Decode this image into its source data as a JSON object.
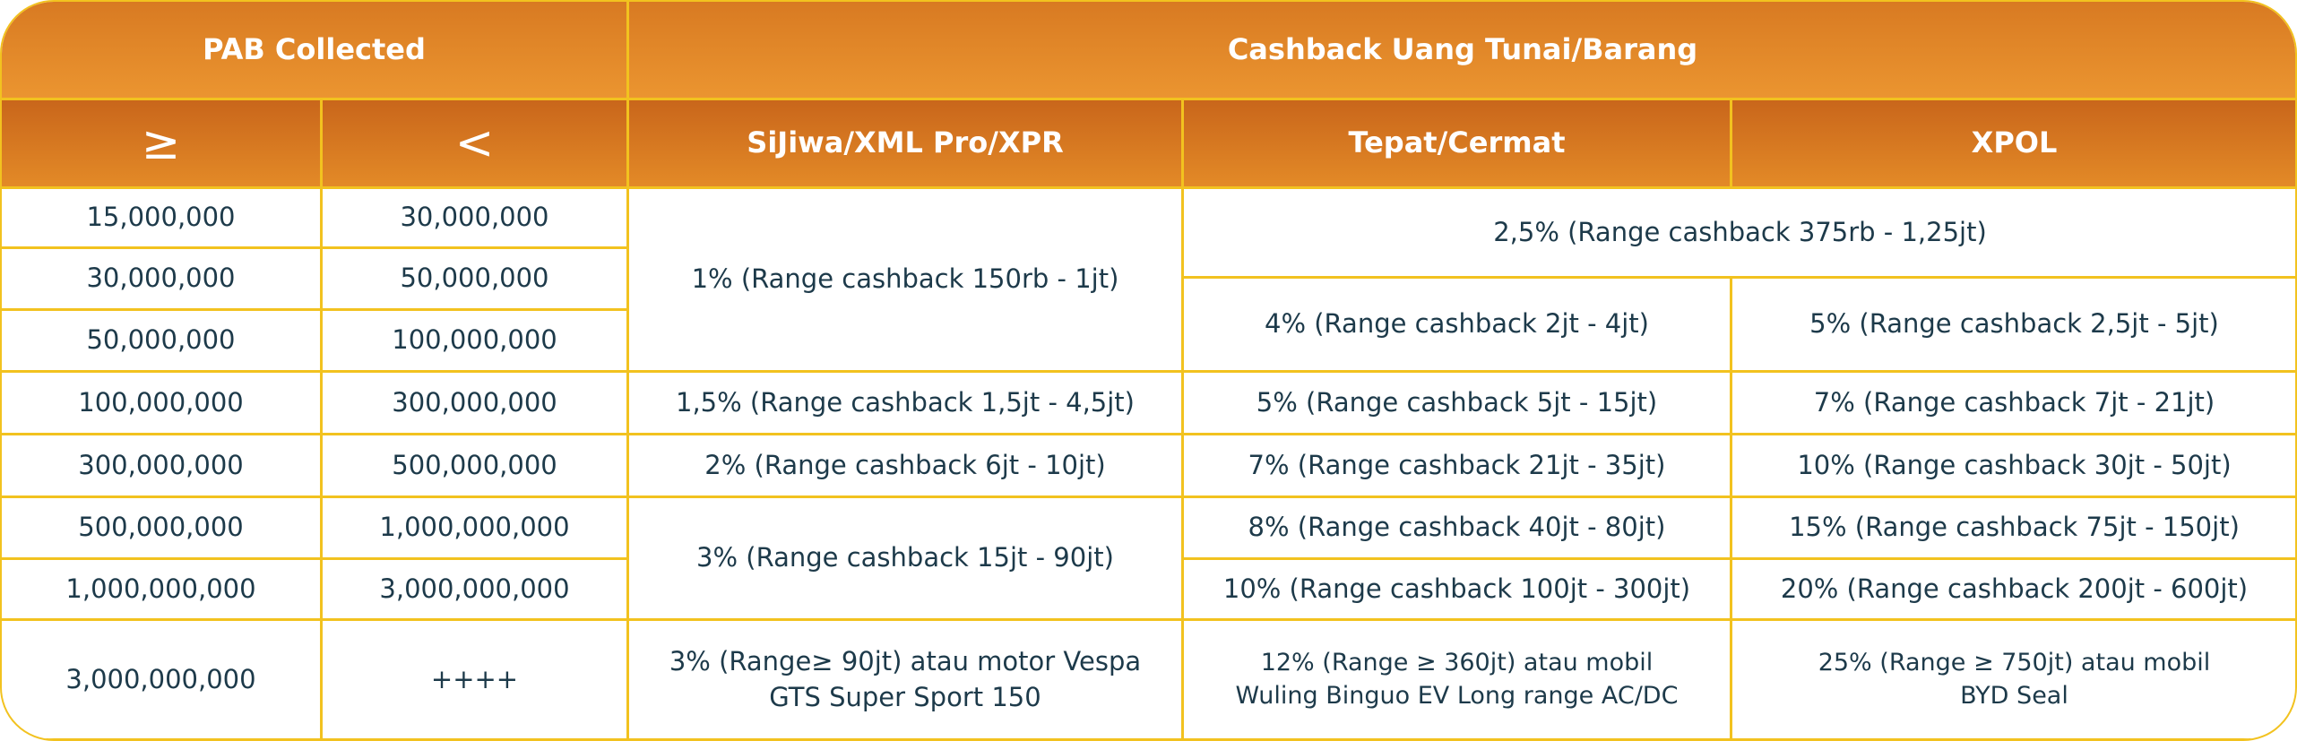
{
  "header": {
    "group_left": "PAB Collected",
    "group_right": "Cashback Uang Tunai/Barang",
    "columns": [
      "≥",
      "<",
      "SiJiwa/XML Pro/XPR",
      "Tepat/Cermat",
      "XPOL"
    ]
  },
  "pab_rows": [
    [
      "15,000,000",
      "30,000,000"
    ],
    [
      "30,000,000",
      "50,000,000"
    ],
    [
      "50,000,000",
      "100,000,000"
    ],
    [
      "100,000,000",
      "300,000,000"
    ],
    [
      "300,000,000",
      "500,000,000"
    ],
    [
      "500,000,000",
      "1,000,000,000"
    ],
    [
      "1,000,000,000",
      "3,000,000,000"
    ],
    [
      "3,000,000,000",
      "++++"
    ]
  ],
  "cashback_cells": [
    {
      "lines": [
        "1% (Range cashback 150rb - 1jt)"
      ]
    },
    {
      "lines": [
        "1,5% (Range cashback 1,5jt - 4,5jt)"
      ]
    },
    {
      "lines": [
        "2% (Range cashback 6jt - 10jt)"
      ]
    },
    {
      "lines": [
        "3% (Range cashback 15jt - 90jt)"
      ]
    },
    {
      "lines": [
        "3% (Range≥ 90jt) atau motor Vespa",
        "GTS Super Sport 150"
      ]
    },
    {
      "lines": [
        "2,5% (Range cashback 375rb - 1,25jt)"
      ]
    },
    {
      "lines": [
        "4% (Range cashback 2jt - 4jt)"
      ]
    },
    {
      "lines": [
        "5% (Range cashback 5jt - 15jt)"
      ]
    },
    {
      "lines": [
        "7% (Range cashback 21jt - 35jt)"
      ]
    },
    {
      "lines": [
        "8% (Range cashback 40jt - 80jt)"
      ]
    },
    {
      "lines": [
        "10% (Range cashback 100jt - 300jt)"
      ]
    },
    {
      "lines": [
        "12% (Range ≥ 360jt) atau mobil",
        "Wuling Binguo EV Long range AC/DC"
      ]
    },
    {
      "lines": [
        "5% (Range cashback 2,5jt - 5jt)"
      ]
    },
    {
      "lines": [
        "7% (Range cashback 7jt - 21jt)"
      ]
    },
    {
      "lines": [
        "10% (Range cashback 30jt - 50jt)"
      ]
    },
    {
      "lines": [
        "15% (Range cashback 75jt - 150jt)"
      ]
    },
    {
      "lines": [
        "20% (Range cashback 200jt - 600jt)"
      ]
    },
    {
      "lines": [
        "25% (Range ≥ 750jt) atau mobil",
        "BYD Seal"
      ]
    }
  ]
}
